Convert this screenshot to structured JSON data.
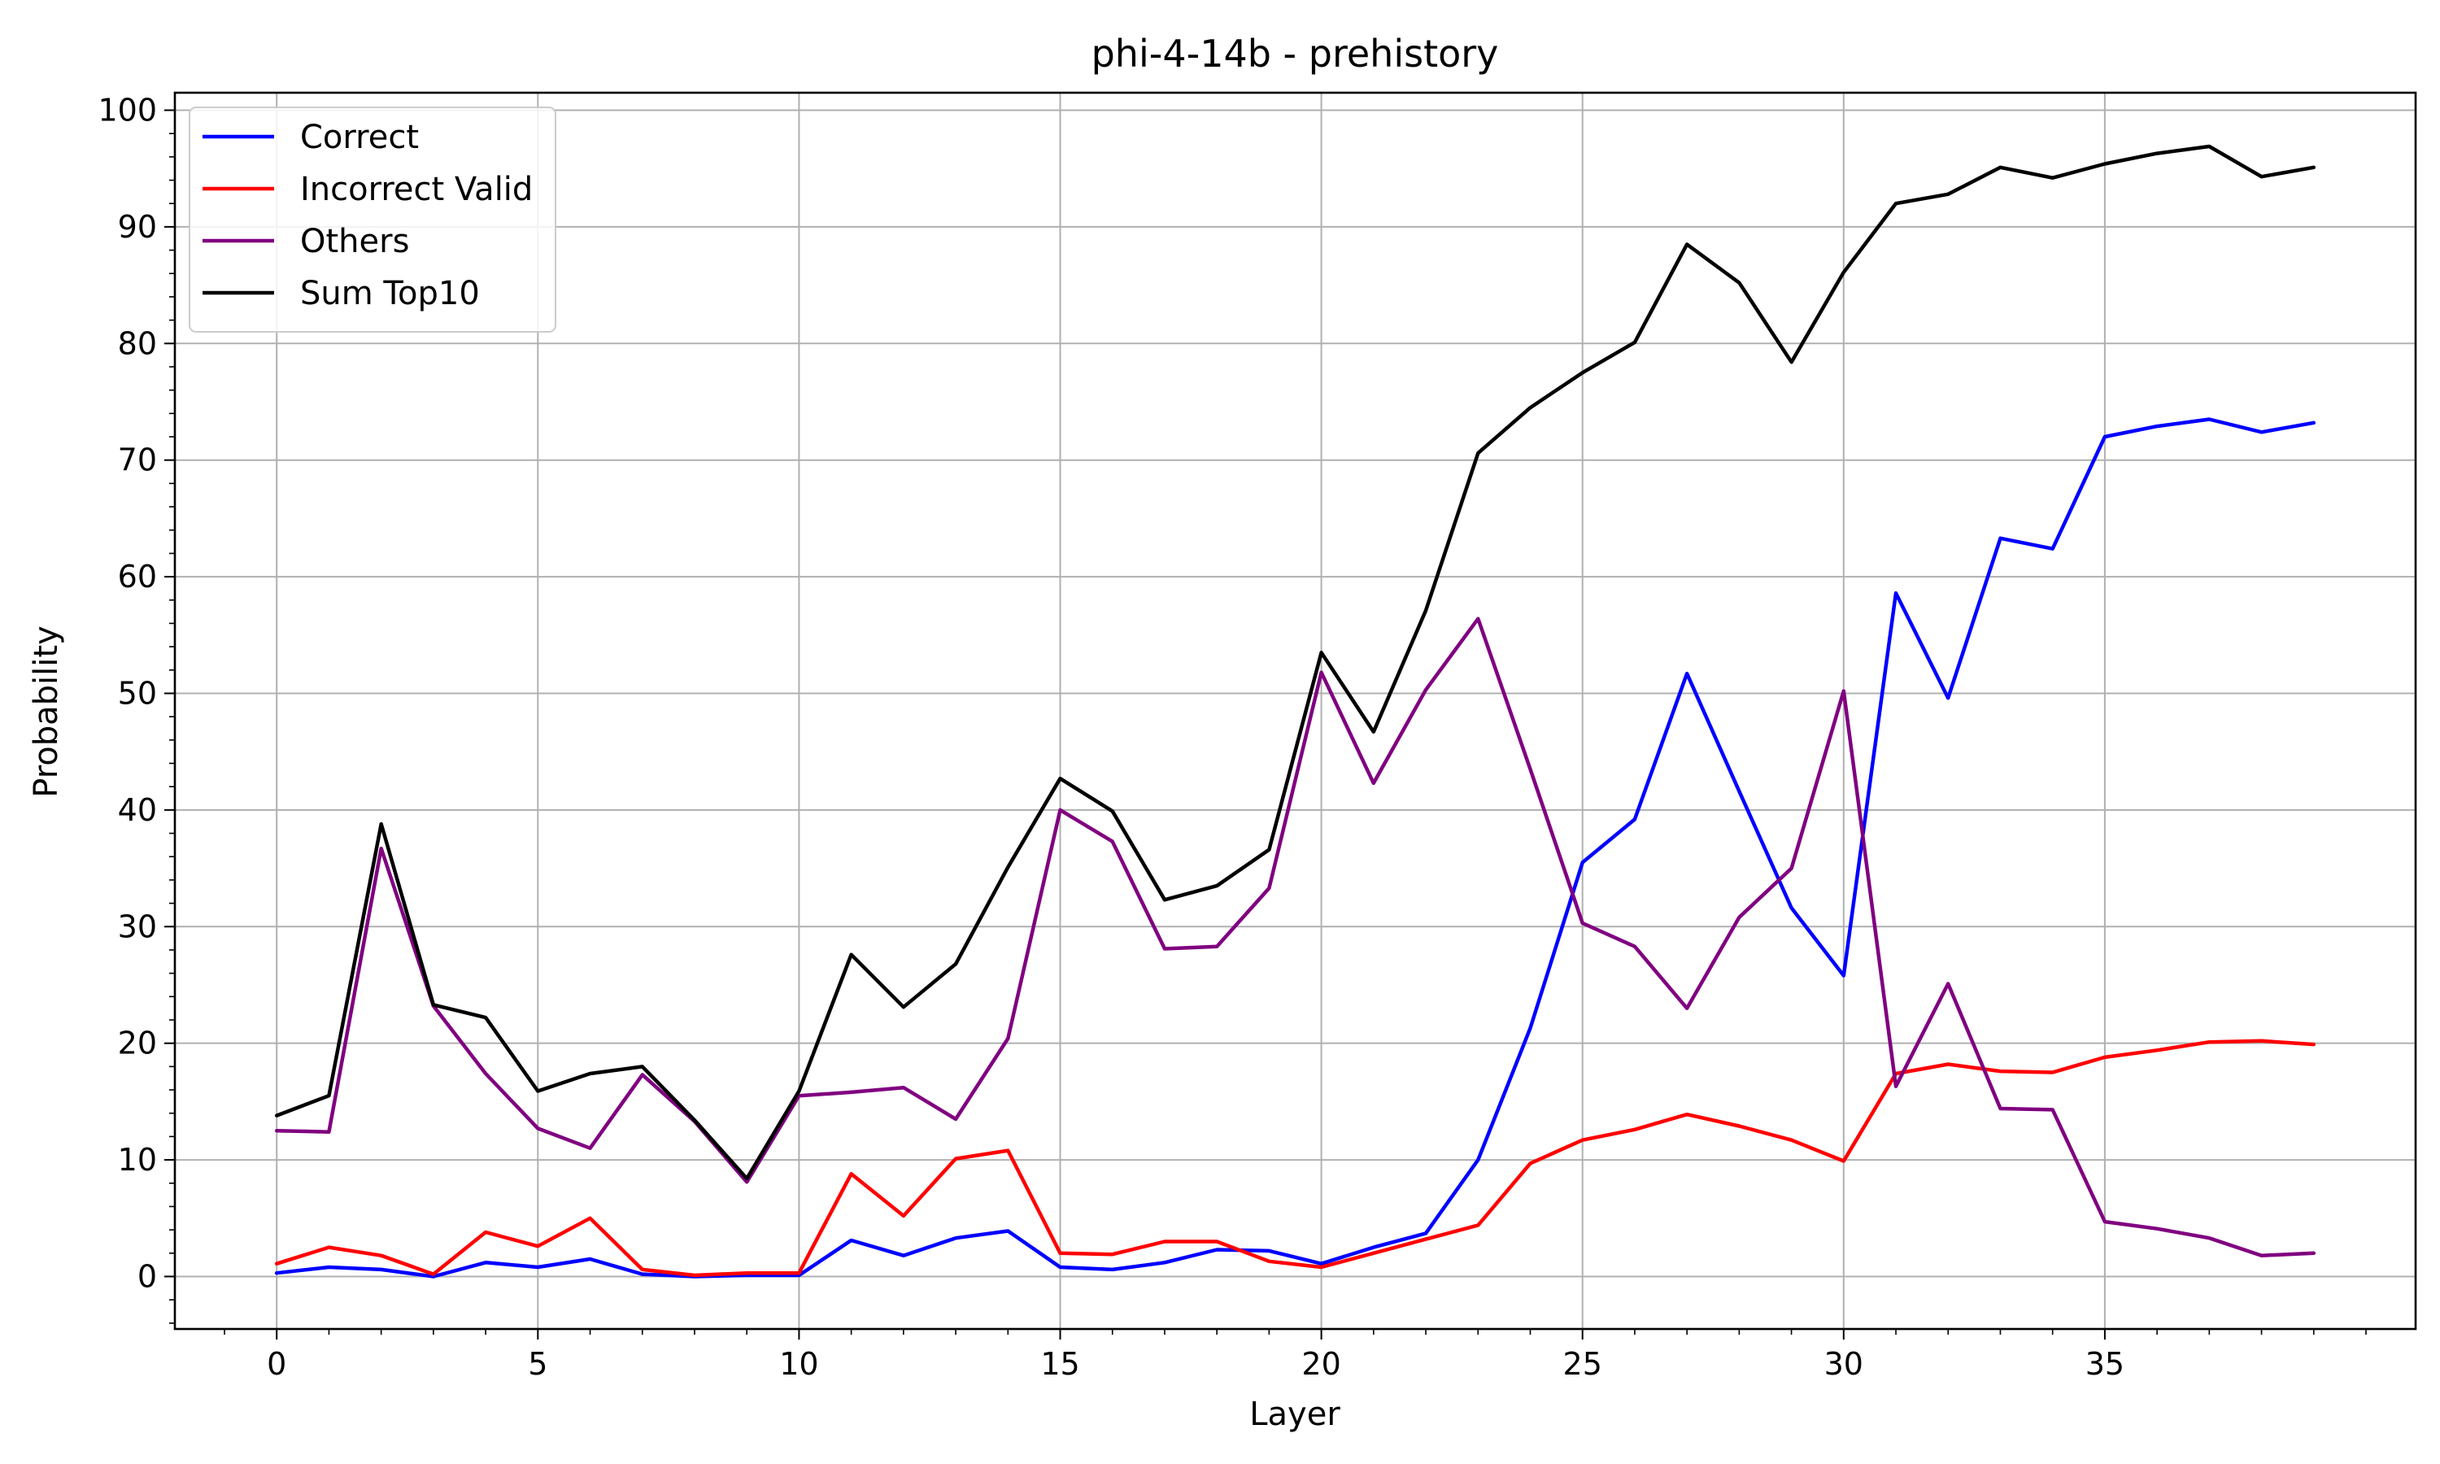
{
  "chart_data": {
    "type": "line",
    "title": "phi-4-14b - prehistory",
    "xlabel": "Layer",
    "ylabel": "Probability",
    "xlim": [
      -1.95,
      40.95
    ],
    "ylim": [
      -4.5,
      101.5
    ],
    "xticks": [
      0,
      5,
      10,
      15,
      20,
      25,
      30,
      35
    ],
    "yticks": [
      0,
      10,
      20,
      30,
      40,
      50,
      60,
      70,
      80,
      90,
      100
    ],
    "grid": true,
    "legend_position": "top-left",
    "x": [
      0,
      1,
      2,
      3,
      4,
      5,
      6,
      7,
      8,
      9,
      10,
      11,
      12,
      13,
      14,
      15,
      16,
      17,
      18,
      19,
      20,
      21,
      22,
      23,
      24,
      25,
      26,
      27,
      28,
      29,
      30,
      31,
      32,
      33,
      34,
      35,
      36,
      37,
      38,
      39
    ],
    "series": [
      {
        "name": "Correct",
        "color": "#0000ff",
        "values": [
          0.3,
          0.8,
          0.6,
          0.0,
          1.2,
          0.8,
          1.5,
          0.2,
          0.0,
          0.1,
          0.1,
          3.1,
          1.8,
          3.3,
          3.9,
          0.8,
          0.6,
          1.2,
          2.3,
          2.2,
          1.1,
          2.5,
          3.7,
          10.0,
          21.3,
          35.5,
          39.2,
          51.7,
          41.6,
          31.6,
          25.8,
          58.6,
          49.6,
          63.3,
          62.4,
          72.0,
          72.9,
          73.5,
          72.4,
          73.2
        ]
      },
      {
        "name": "Incorrect Valid",
        "color": "#ff0000",
        "values": [
          1.1,
          2.5,
          1.8,
          0.2,
          3.8,
          2.6,
          5.0,
          0.6,
          0.1,
          0.3,
          0.3,
          8.8,
          5.2,
          10.1,
          10.8,
          2.0,
          1.9,
          3.0,
          3.0,
          1.3,
          0.8,
          2.0,
          3.2,
          4.4,
          9.7,
          11.7,
          12.6,
          13.9,
          12.9,
          11.7,
          9.9,
          17.4,
          18.2,
          17.6,
          17.5,
          18.8,
          19.4,
          20.1,
          20.2,
          19.9
        ]
      },
      {
        "name": "Others",
        "color": "#800080",
        "values": [
          12.5,
          12.4,
          36.7,
          23.2,
          17.4,
          12.7,
          11.0,
          17.3,
          13.3,
          8.1,
          15.5,
          15.8,
          16.2,
          13.5,
          20.4,
          40.0,
          37.3,
          28.1,
          28.3,
          33.3,
          51.8,
          42.3,
          50.3,
          56.4,
          43.5,
          30.3,
          28.3,
          23.0,
          30.8,
          35.0,
          50.2,
          16.3,
          25.1,
          14.4,
          14.3,
          4.7,
          4.1,
          3.3,
          1.8,
          2.0
        ]
      },
      {
        "name": "Sum Top10",
        "color": "#000000",
        "values": [
          13.8,
          15.5,
          38.8,
          23.3,
          22.2,
          15.9,
          17.4,
          18.0,
          13.4,
          8.4,
          15.9,
          27.6,
          23.1,
          26.8,
          35.1,
          42.7,
          39.9,
          32.3,
          33.5,
          36.6,
          53.5,
          46.7,
          57.1,
          70.6,
          74.5,
          77.5,
          80.1,
          88.5,
          85.2,
          78.4,
          86.1,
          92.0,
          92.8,
          95.1,
          94.2,
          95.4,
          96.3,
          96.9,
          94.3,
          95.1
        ]
      }
    ]
  }
}
